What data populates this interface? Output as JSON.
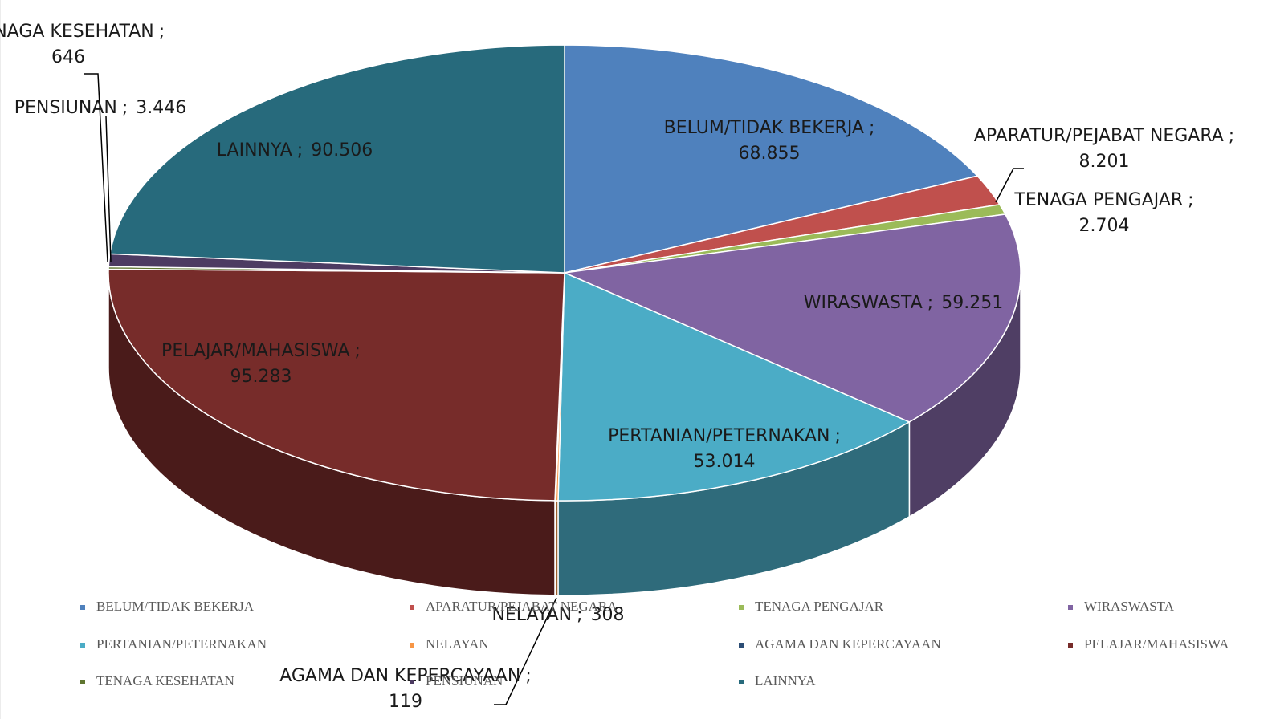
{
  "chart_data": {
    "type": "pie3d",
    "categories": [
      "BELUM/TIDAK BEKERJA",
      "APARATUR/PEJABAT NEGARA",
      "TENAGA PENGAJAR",
      "WIRASWASTA",
      "PERTANIAN/PETERNAKAN",
      "NELAYAN",
      "AGAMA DAN KEPERCAYAAN",
      "PELAJAR/MAHASISWA",
      "TENAGA KESEHATAN",
      "PENSIUNAN",
      "LAINNYA"
    ],
    "values": [
      68855,
      8201,
      2704,
      59251,
      53014,
      308,
      119,
      95283,
      646,
      3446,
      90506
    ],
    "value_labels": [
      "68.855",
      "8.201",
      "2.704",
      "59.251",
      "53.014",
      "308",
      "119",
      "95.283",
      "646",
      "3.446",
      "90.506"
    ],
    "label_separator": ";",
    "colors": [
      "#4f81bd",
      "#c0504d",
      "#9bbb59",
      "#8064a2",
      "#4bacc6",
      "#f79646",
      "#2c4d75",
      "#772c2a",
      "#5f7530",
      "#4d3b62",
      "#276a7c"
    ],
    "legend": "bottom"
  }
}
